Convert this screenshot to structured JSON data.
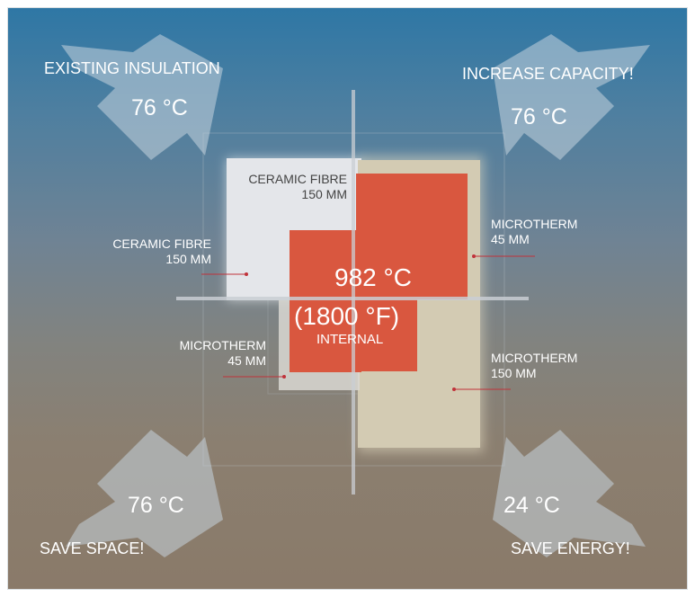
{
  "corners": {
    "top_left": {
      "title": "EXISTING INSULATION",
      "temp": "76 °C"
    },
    "top_right": {
      "title": "INCREASE CAPACITY!",
      "temp": "76 °C"
    },
    "bottom_left": {
      "title": "SAVE SPACE!",
      "temp": "76 °C"
    },
    "bottom_right": {
      "title": "SAVE ENERGY!",
      "temp": "24 °C"
    }
  },
  "center": {
    "temp_c": "982 °C",
    "temp_f": "(1800 °F)",
    "label": "INTERNAL"
  },
  "layers": {
    "tl_inner": {
      "name": "CERAMIC FIBRE",
      "thickness": "150 MM"
    },
    "tl_outer": {
      "name": "CERAMIC FIBRE",
      "thickness": "150 MM"
    },
    "tr": {
      "name": "MICROTHERM",
      "thickness": "45 MM"
    },
    "bl": {
      "name": "MICROTHERM",
      "thickness": "45 MM"
    },
    "br": {
      "name": "MICROTHERM",
      "thickness": "150 MM"
    }
  },
  "colors": {
    "hot_core": "#d9573f",
    "ceramic_fibre": "#e4e6ea",
    "microtherm": "#d3cbb3",
    "leader_line": "#c0323a",
    "arrow": "#c7d3df"
  }
}
